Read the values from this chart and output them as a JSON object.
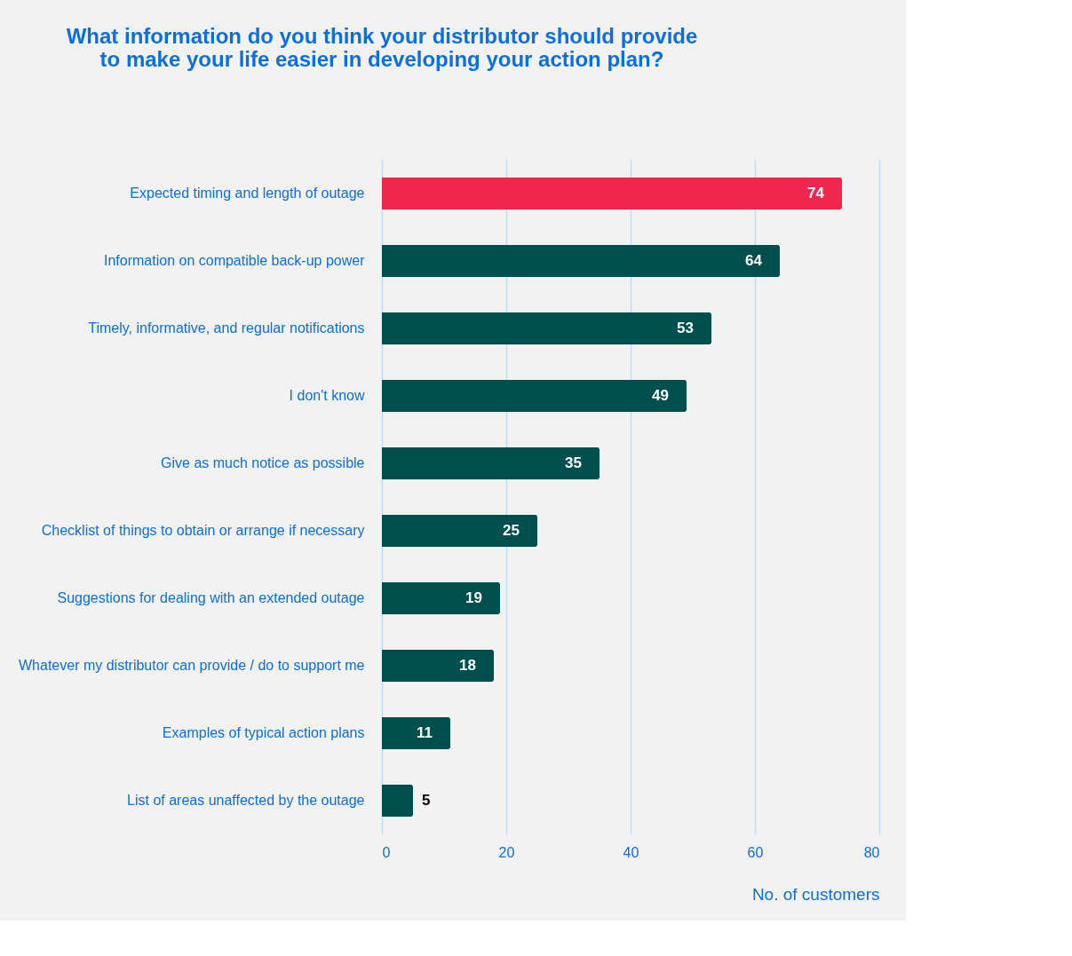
{
  "chart_data": {
    "type": "bar",
    "orientation": "horizontal",
    "title": "What information do you think your distributor should provide\nto make your life easier in developing your action plan?",
    "xlabel": "No. of customers",
    "categories": [
      "Expected timing and length of outage",
      "Information on compatible back-up power",
      "Timely, informative, and regular notifications",
      "I don't know",
      "Give as much notice as possible",
      "Checklist of things to obtain or arrange if necessary",
      "Suggestions for dealing with an extended outage",
      "Whatever my distributor can provide / do to support me",
      "Examples of typical action plans",
      "List of areas unaffected by the outage"
    ],
    "values": [
      74,
      64,
      53,
      49,
      35,
      25,
      19,
      18,
      11,
      5
    ],
    "colors": [
      "#f0264f",
      "#004f4f",
      "#004f4f",
      "#004f4f",
      "#004f4f",
      "#004f4f",
      "#004f4f",
      "#004f4f",
      "#004f4f",
      "#004f4f"
    ],
    "xlim": [
      0,
      80
    ],
    "xticks": [
      0,
      20,
      40,
      60,
      80
    ],
    "grid": "x",
    "data_labels": true
  }
}
